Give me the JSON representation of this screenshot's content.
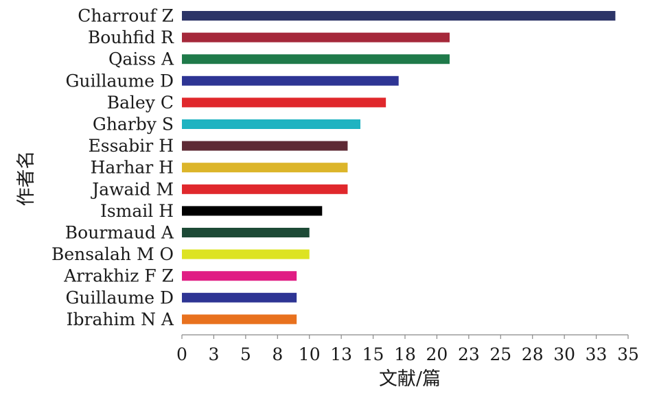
{
  "chart_data": {
    "type": "bar",
    "orientation": "horizontal",
    "title": "",
    "xlabel": "文献/篇",
    "ylabel": "作者名",
    "xlim": [
      0,
      35
    ],
    "x_ticks": [
      "0",
      "3",
      "5",
      "8",
      "10",
      "13",
      "15",
      "18",
      "20",
      "23",
      "25",
      "28",
      "30",
      "33",
      "35"
    ],
    "grid": false,
    "legend": "none",
    "categories": [
      "Charrouf Z",
      "Bouhfid R",
      "Qaiss A",
      "Guillaume D",
      "Baley C",
      "Gharby S",
      "Essabir H",
      "Harhar H",
      "Jawaid M",
      "Ismail H",
      "Bourmaud A",
      "Bensalah M O",
      "Arrakhiz F Z",
      "Guillaume D",
      "Ibrahim N A"
    ],
    "values": [
      34,
      21,
      21,
      17,
      16,
      14,
      13,
      13,
      13,
      11,
      10,
      10,
      9,
      9,
      9
    ],
    "colors": [
      "#2c3467",
      "#a5283a",
      "#1f7a4a",
      "#2e3594",
      "#e0282c",
      "#1fb3c1",
      "#5e2a35",
      "#dcb52a",
      "#e0282c",
      "#000000",
      "#1d4a36",
      "#dde322",
      "#e01d84",
      "#2e3594",
      "#e8711e"
    ]
  }
}
